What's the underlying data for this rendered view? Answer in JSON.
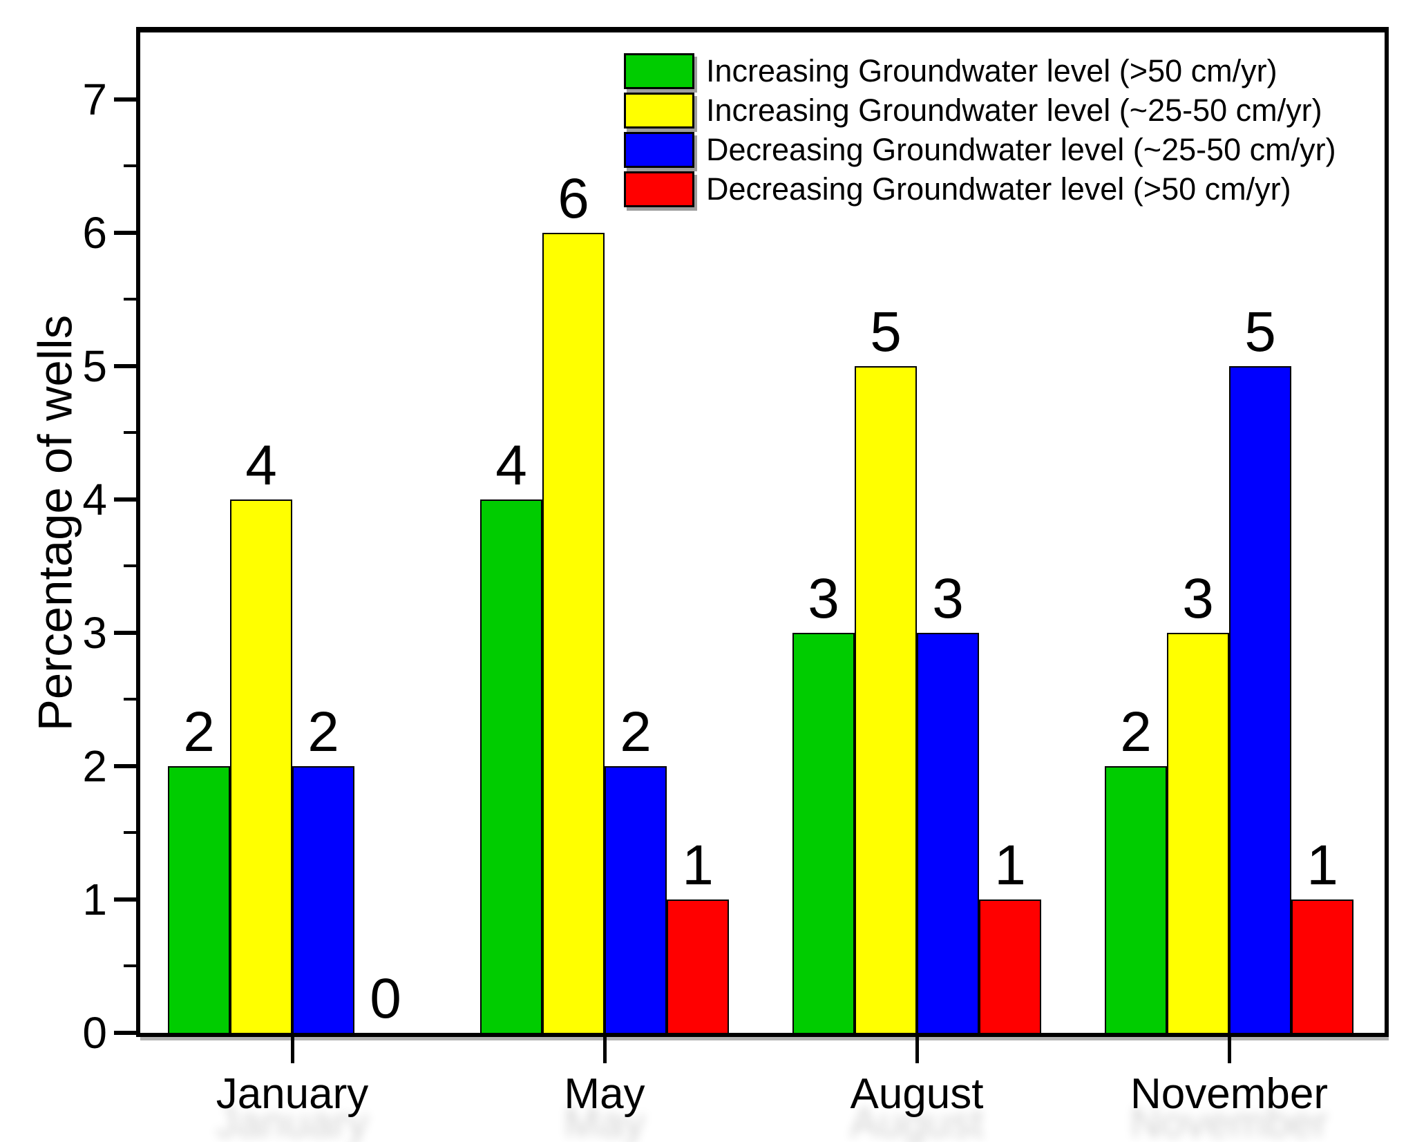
{
  "figure": {
    "background": "#FFFFFF",
    "axis_color": "#000000"
  },
  "chart_data": {
    "type": "bar",
    "title": "",
    "xlabel": "",
    "ylabel": "Percentage of wells",
    "categories": [
      "January",
      "May",
      "August",
      "November"
    ],
    "series": [
      {
        "key": "increasing-gt50",
        "name": "Increasing Groundwater level (>50 cm/yr)",
        "color": "#00CC00",
        "values": [
          2,
          4,
          3,
          2
        ]
      },
      {
        "key": "increasing-25-50",
        "name": "Increasing Groundwater level (~25-50 cm/yr)",
        "color": "#FFFF00",
        "values": [
          4,
          6,
          5,
          3
        ]
      },
      {
        "key": "decreasing-25-50",
        "name": "Decreasing Groundwater level (~25-50 cm/yr)",
        "color": "#0000FF",
        "values": [
          2,
          2,
          3,
          5
        ]
      },
      {
        "key": "decreasing-gt50",
        "name": "Decreasing Groundwater level (>50 cm/yr)",
        "color": "#FF0000",
        "values": [
          0,
          1,
          1,
          1
        ]
      }
    ],
    "ylim": [
      0,
      7.5
    ],
    "ytick_values": [
      0,
      1,
      2,
      3,
      4,
      5,
      6,
      7
    ],
    "minor_tick_values": [
      0.5,
      1.5,
      2.5,
      3.5,
      4.5,
      5.5,
      6.5
    ],
    "bar_value_labels": true,
    "grid": false,
    "legend_position": "top-right",
    "bar_border_color": "#000000"
  }
}
